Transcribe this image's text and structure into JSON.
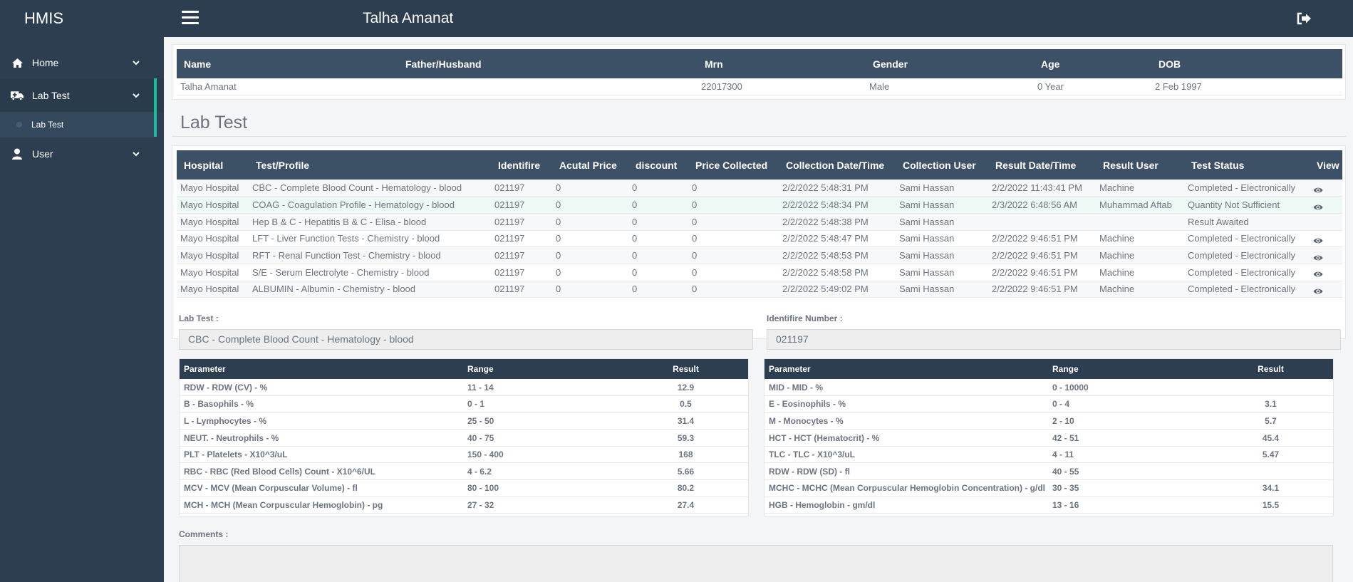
{
  "app": {
    "brand": "HMIS",
    "page_title": "Talha Amanat"
  },
  "sidebar": {
    "items": [
      {
        "label": "Home",
        "icon": "home-icon"
      },
      {
        "label": "Lab Test",
        "icon": "ambulance-icon",
        "sub": [
          "Lab Test"
        ]
      },
      {
        "label": "User",
        "icon": "user-icon"
      }
    ]
  },
  "patient": {
    "headers": [
      "Name",
      "Father/Husband",
      "Mrn",
      "Gender",
      "Age",
      "DOB"
    ],
    "row": [
      "Talha Amanat",
      "",
      "22017300",
      "Male",
      "0 Year",
      "2 Feb 1997"
    ]
  },
  "lab_section": {
    "title": "Lab Test",
    "headers": [
      "Hospital",
      "Test/Profile",
      "Identifire",
      "Acutal Price",
      "discount",
      "Price Collected",
      "Collection Date/Time",
      "Collection User",
      "Result Date/Time",
      "Result User",
      "Test Status",
      "View"
    ],
    "rows": [
      [
        "Mayo Hospital",
        "CBC - Complete Blood Count - Hematology - blood",
        "021197",
        "0",
        "0",
        "0",
        "2/2/2022 5:48:31 PM",
        "Sami Hassan",
        "2/2/2022 11:43:41 PM",
        "Machine",
        "Completed - Electronically",
        "eye"
      ],
      [
        "Mayo Hospital",
        "COAG - Coagulation Profile - Hematology - blood",
        "021197",
        "0",
        "0",
        "0",
        "2/2/2022 5:48:34 PM",
        "Sami Hassan",
        "2/3/2022 6:48:56 AM",
        "Muhammad Aftab",
        "Quantity Not Sufficient",
        "eye"
      ],
      [
        "Mayo Hospital",
        "Hep B & C - Hepatitis B & C - Elisa - blood",
        "021197",
        "0",
        "0",
        "0",
        "2/2/2022 5:48:38 PM",
        "Sami Hassan",
        "",
        "",
        "Result Awaited",
        ""
      ],
      [
        "Mayo Hospital",
        "LFT - Liver Function Tests - Chemistry - blood",
        "021197",
        "0",
        "0",
        "0",
        "2/2/2022 5:48:47 PM",
        "Sami Hassan",
        "2/2/2022 9:46:51 PM",
        "Machine",
        "Completed - Electronically",
        "eye"
      ],
      [
        "Mayo Hospital",
        "RFT - Renal Function Test - Chemistry - blood",
        "021197",
        "0",
        "0",
        "0",
        "2/2/2022 5:48:53 PM",
        "Sami Hassan",
        "2/2/2022 9:46:51 PM",
        "Machine",
        "Completed - Electronically",
        "eye"
      ],
      [
        "Mayo Hospital",
        "S/E - Serum Electrolyte - Chemistry - blood",
        "021197",
        "0",
        "0",
        "0",
        "2/2/2022 5:48:58 PM",
        "Sami Hassan",
        "2/2/2022 9:46:51 PM",
        "Machine",
        "Completed - Electronically",
        "eye"
      ],
      [
        "Mayo Hospital",
        "ALBUMIN - Albumin - Chemistry - blood",
        "021197",
        "0",
        "0",
        "0",
        "2/2/2022 5:49:02 PM",
        "Sami Hassan",
        "2/2/2022 9:46:51 PM",
        "Machine",
        "Completed - Electronically",
        "eye"
      ]
    ]
  },
  "detail": {
    "lab_test_label": "Lab Test :",
    "lab_test_value": "CBC - Complete Blood Count - Hematology - blood",
    "identifier_label": "Identifire Number :",
    "identifier_value": "021197",
    "param_headers": [
      "Parameter",
      "Range",
      "Result"
    ],
    "left_params": [
      [
        "RDW - RDW (CV) - %",
        "11 - 14",
        "12.9"
      ],
      [
        "B - Basophils - %",
        "0 - 1",
        "0.5"
      ],
      [
        "L - Lymphocytes - %",
        "25 - 50",
        "31.4"
      ],
      [
        "NEUT. - Neutrophils - %",
        "40 - 75",
        "59.3"
      ],
      [
        "PLT - Platelets - X10^3/uL",
        "150 - 400",
        "168"
      ],
      [
        "RBC - RBC (Red Blood Cells) Count - X10^6/UL",
        "4 - 6.2",
        "5.66"
      ],
      [
        "MCV - MCV (Mean Corpuscular Volume) - fl",
        "80 - 100",
        "80.2"
      ],
      [
        "MCH - MCH (Mean Corpuscular Hemoglobin) - pg",
        "27 - 32",
        "27.4"
      ]
    ],
    "right_params": [
      [
        "MID - MID - %",
        "0 - 10000",
        ""
      ],
      [
        "E - Eosinophils - %",
        "0 - 4",
        "3.1"
      ],
      [
        "M - Monocytes - %",
        "2 - 10",
        "5.7"
      ],
      [
        "HCT - HCT (Hematocrit) - %",
        "42 - 51",
        "45.4"
      ],
      [
        "TLC - TLC - X10^3/uL",
        "4 - 11",
        "5.47"
      ],
      [
        "RDW - RDW (SD) - fl",
        "40 - 55",
        ""
      ],
      [
        "MCHC - MCHC (Mean Corpuscular Hemoglobin Concentration) - g/dl",
        "30 - 35",
        "34.1"
      ],
      [
        "HGB - Hemoglobin - gm/dl",
        "13 - 16",
        "15.5"
      ]
    ],
    "comments_label": "Comments :"
  },
  "colors": {
    "sidebar": "#2c3e50",
    "accent": "#1abc9c",
    "table_head": "#3d5166"
  }
}
